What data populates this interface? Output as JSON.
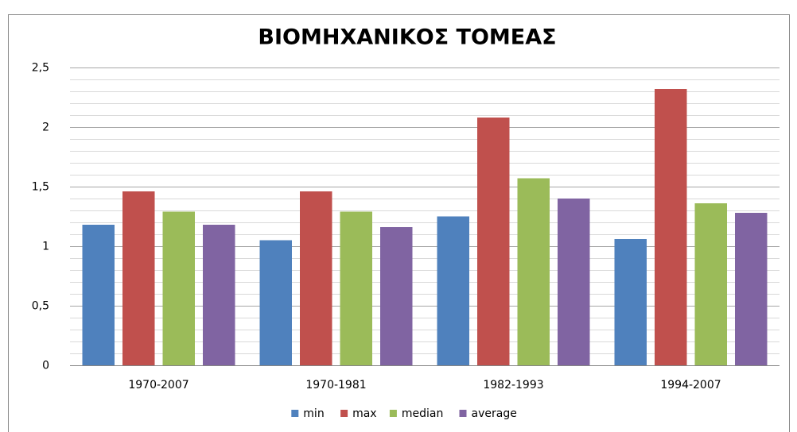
{
  "chart_data": {
    "type": "bar",
    "title": "ΒΙΟΜΗΧΑΝΙΚΟΣ ΤΟΜΕΑΣ",
    "categories": [
      "1970-2007",
      "1970-1981",
      "1982-1993",
      "1994-2007"
    ],
    "series": [
      {
        "name": "min",
        "color": "#4f81bd",
        "values": [
          1.18,
          1.05,
          1.25,
          1.06
        ]
      },
      {
        "name": "max",
        "color": "#c0504d",
        "values": [
          1.46,
          1.46,
          2.08,
          2.32
        ]
      },
      {
        "name": "median",
        "color": "#9bbb59",
        "values": [
          1.29,
          1.29,
          1.57,
          1.36
        ]
      },
      {
        "name": "average",
        "color": "#8064a2",
        "values": [
          1.18,
          1.16,
          1.4,
          1.28
        ]
      }
    ],
    "ylim": [
      0,
      2.5
    ],
    "yticks": [
      0,
      {
        "value": 0.5,
        "label": "0,5"
      },
      1,
      {
        "value": 1.5,
        "label": "1,5"
      },
      2,
      {
        "value": 2.5,
        "label": "2,5"
      }
    ],
    "minor_yticks": [
      0.1,
      0.2,
      0.3,
      0.4,
      0.6,
      0.7,
      0.8,
      0.9,
      1.1,
      1.2,
      1.3,
      1.4,
      1.6,
      1.7,
      1.8,
      1.9,
      2.1,
      2.2,
      2.3,
      2.4
    ],
    "grid": true,
    "legend": "bottom"
  }
}
